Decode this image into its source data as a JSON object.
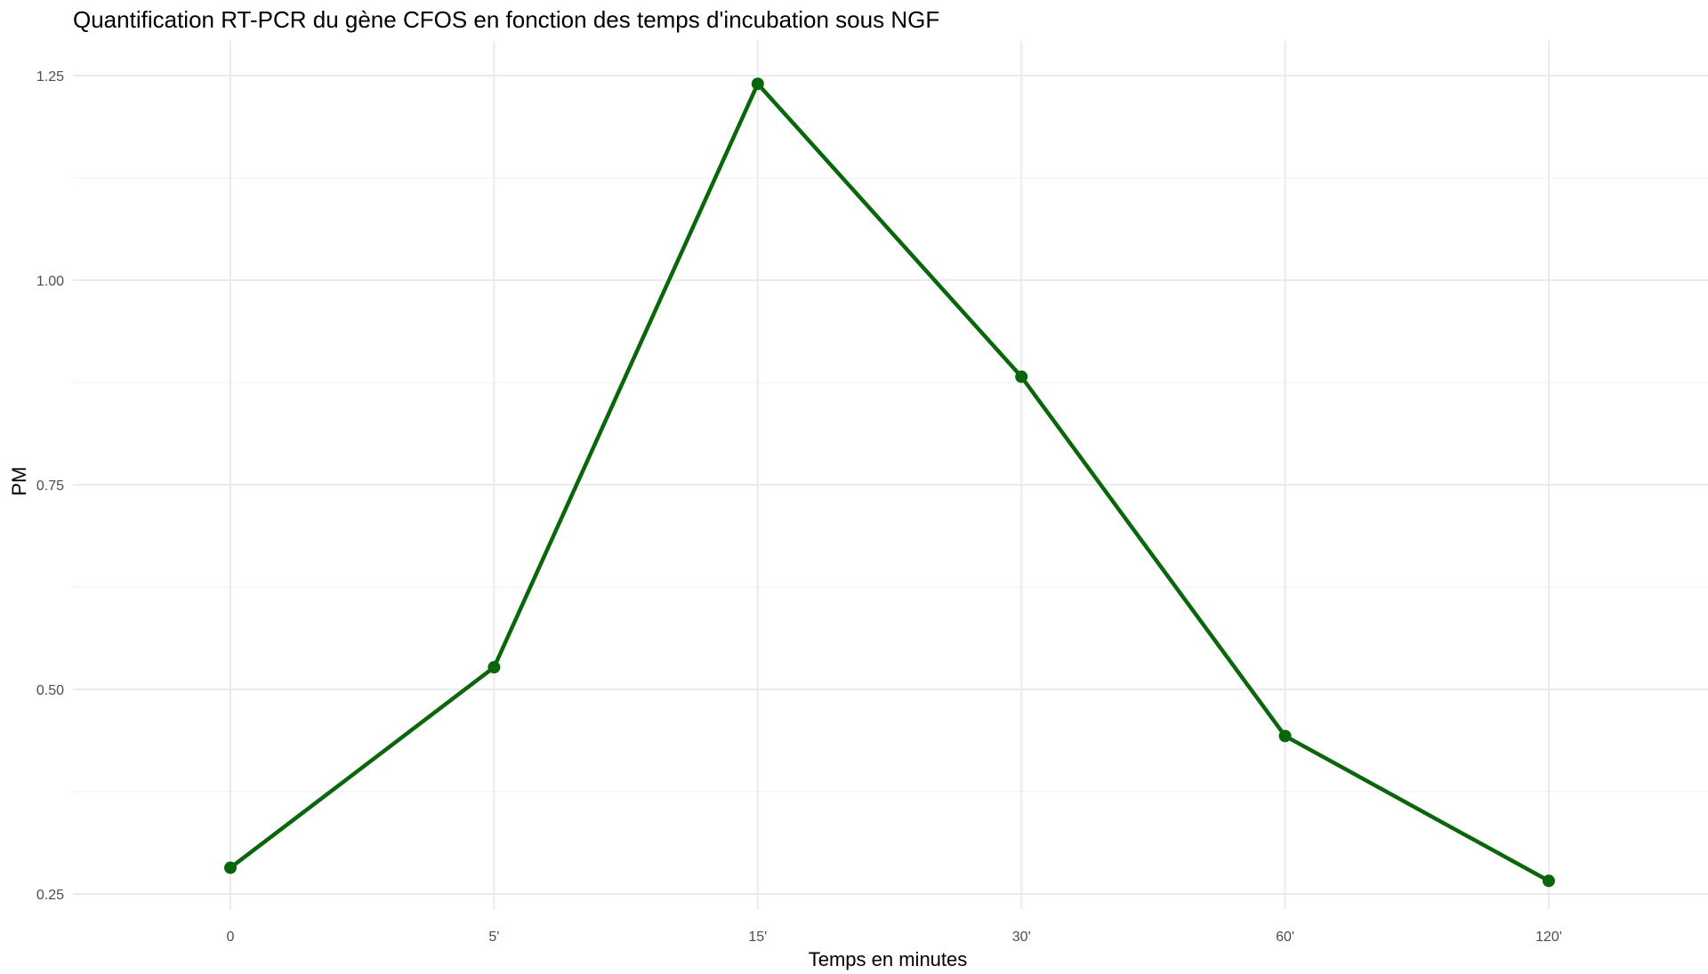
{
  "chart_data": {
    "type": "line",
    "title": "Quantification RT-PCR du gène CFOS en fonction des temps d'incubation sous NGF",
    "xlabel": "Temps en minutes",
    "ylabel": "PM",
    "categories": [
      "0",
      "5'",
      "15'",
      "30'",
      "60'",
      "120'"
    ],
    "series": [
      {
        "values": [
          0.282,
          0.527,
          1.24,
          0.882,
          0.443,
          0.266
        ],
        "color": "#0a660a"
      }
    ],
    "ylim": [
      0.23,
      1.29
    ],
    "yticks": [
      0.25,
      0.5,
      0.75,
      1.0,
      1.25
    ],
    "ytick_labels": [
      "0.25",
      "0.50",
      "0.75",
      "1.00",
      "1.25"
    ],
    "grid": true,
    "legend": "none"
  }
}
